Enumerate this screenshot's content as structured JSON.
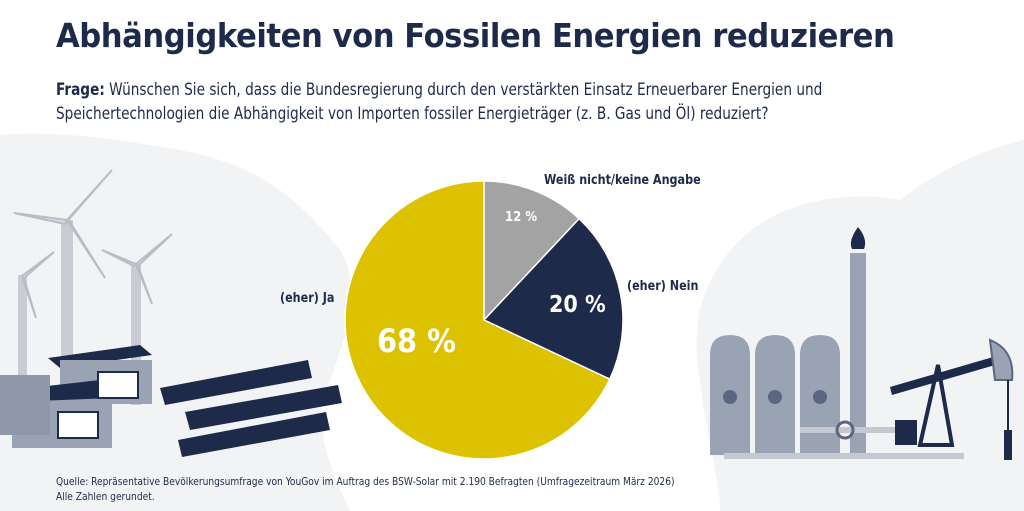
{
  "header": {
    "title": "Abhängigkeiten von Fossilen Energien reduzieren",
    "question_prefix": "Frage:",
    "question_text": " Wünschen Sie sich, dass die Bundesregierung durch den verstärkten Einsatz Erneuerbarer Energien und Speichertechnologien die Abhängigkeit von Importen fossiler Energieträger (z. B. Gas und Öl) reduziert?"
  },
  "chart_data": {
    "type": "pie",
    "title": "Abhängigkeiten von Fossilen Energien reduzieren",
    "start_angle_deg": 0,
    "direction": "clockwise-from-top for Weiß nicht, then (eher) Nein, then (eher) Ja",
    "slices": [
      {
        "label": "Weiß nicht/keine Angabe",
        "value": 12,
        "value_label": "12 %",
        "color": "#a3a3a3"
      },
      {
        "label": "(eher) Nein",
        "value": 20,
        "value_label": "20 %",
        "color": "#1e2a4a"
      },
      {
        "label": "(eher) Ja",
        "value": 68,
        "value_label": "68 %",
        "color": "#dcc200"
      }
    ],
    "unit": "%"
  },
  "footer": {
    "source": "Quelle: Repräsentative Bevölkerungsumfrage von YouGov im Auftrag des BSW-Solar mit 2.190 Befragten (Umfragezeitraum März 2026)",
    "note": "Alle Zahlen gerundet."
  },
  "illustrations": {
    "left": "renewables-icon (wind turbines, battery storage, solar panels)",
    "right": "fossil-icon (oil tanks, flare stack, pumpjack)"
  }
}
